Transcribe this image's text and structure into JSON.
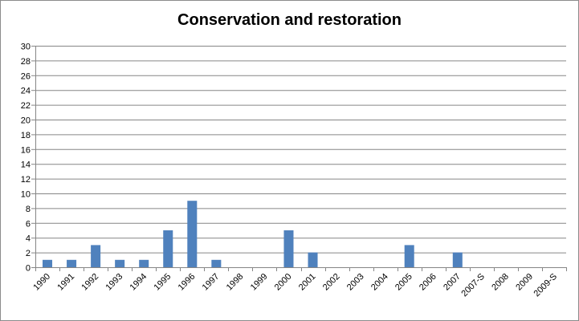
{
  "chart_data": {
    "type": "bar",
    "title": "Conservation and restoration",
    "xlabel": "",
    "ylabel": "",
    "categories": [
      "1990",
      "1991",
      "1992",
      "1993",
      "1994",
      "1995",
      "1996",
      "1997",
      "1998",
      "1999",
      "2000",
      "2001",
      "2002",
      "2003",
      "2004",
      "2005",
      "2006",
      "2007",
      "2007-S",
      "2008",
      "2009",
      "2009-S"
    ],
    "series": [
      {
        "values": [
          1,
          1,
          3,
          1,
          1,
          5,
          9,
          1,
          0,
          0,
          5,
          2,
          0,
          0,
          0,
          3,
          0,
          2,
          0,
          0,
          0,
          0
        ]
      }
    ],
    "ylim": [
      0,
      30
    ],
    "yticks": [
      0,
      2,
      4,
      6,
      8,
      10,
      12,
      14,
      16,
      18,
      20,
      22,
      24,
      26,
      28,
      30
    ],
    "grid": true,
    "legend": "none",
    "bar_color": "#4f81bd",
    "grid_color": "#868686"
  }
}
